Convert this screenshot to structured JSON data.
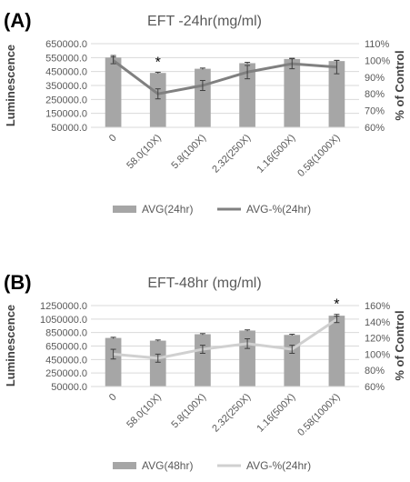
{
  "colors": {
    "bar_a": "#a6a6a6",
    "line_a": "#808080",
    "bar_b": "#a6a6a6",
    "line_b": "#d0d0d0",
    "axis_text": "#595959",
    "axis_title": "#404040",
    "panel_label": "#000000",
    "grid": "#d9d9d9"
  },
  "chart_data": [
    {
      "type": "bar",
      "panel_label": "(A)",
      "title": "EFT -24hr(mg/ml)",
      "xlabel": "",
      "ylabel": "Luminescence",
      "y2label": "% of Control",
      "categories": [
        "0",
        "58.0(10X)",
        "5.8(100X)",
        "2.32(250X)",
        "1.16(500X)",
        "0.58(1000X)"
      ],
      "ylim": [
        50000,
        650000
      ],
      "yticks": [
        50000,
        150000,
        250000,
        350000,
        450000,
        550000,
        650000
      ],
      "ytick_labels": [
        "50000.0",
        "150000.0",
        "250000.0",
        "350000.0",
        "450000.0",
        "550000.0",
        "650000.0"
      ],
      "y2lim": [
        60,
        110
      ],
      "y2ticks": [
        60,
        70,
        80,
        90,
        100,
        110
      ],
      "y2tick_labels": [
        "60%",
        "70%",
        "80%",
        "90%",
        "100%",
        "110%"
      ],
      "grid": true,
      "legend": "bottom",
      "series": [
        {
          "name": "AVG(24hr)",
          "kind": "bar",
          "axis": "left",
          "values": [
            550000,
            440000,
            470000,
            510000,
            540000,
            525000
          ],
          "errors": [
            15000,
            5000,
            5000,
            6000,
            5000,
            5000
          ]
        },
        {
          "name": "AVG-%(24hr)",
          "kind": "line",
          "axis": "right",
          "values": [
            100,
            80,
            85,
            93,
            98,
            96
          ],
          "errors": [
            2,
            3,
            3,
            4,
            3,
            4
          ]
        }
      ],
      "annotations": [
        {
          "category": "58.0(10X)",
          "text": "*"
        }
      ]
    },
    {
      "type": "bar",
      "panel_label": "(B)",
      "title": "EFT-48hr (mg/ml)",
      "xlabel": "",
      "ylabel": "Luminescence",
      "y2label": "% of Control",
      "categories": [
        "0",
        "58.0(10X)",
        "5.8(100X)",
        "2.32(250X)",
        "1.16(500X)",
        "0.58(1000X)"
      ],
      "ylim": [
        50000,
        1250000
      ],
      "yticks": [
        50000,
        250000,
        450000,
        650000,
        850000,
        1050000,
        1250000
      ],
      "ytick_labels": [
        "50000.0",
        "250000.0",
        "450000.0",
        "650000.0",
        "850000.0",
        "1050000.0",
        "1250000.0"
      ],
      "y2lim": [
        60,
        160
      ],
      "y2ticks": [
        60,
        80,
        100,
        120,
        140,
        160
      ],
      "y2tick_labels": [
        "60%",
        "80%",
        "100%",
        "120%",
        "140%",
        "160%"
      ],
      "grid": true,
      "legend": "bottom",
      "series": [
        {
          "name": "AVG(48hr)",
          "kind": "bar",
          "axis": "left",
          "values": [
            770000,
            730000,
            825000,
            880000,
            815000,
            1100000
          ],
          "errors": [
            10000,
            10000,
            10000,
            10000,
            10000,
            20000
          ]
        },
        {
          "name": "AVG-%(24hr)",
          "kind": "line",
          "axis": "right",
          "values": [
            100,
            95,
            106,
            113,
            106,
            143
          ],
          "errors": [
            6,
            5,
            5,
            6,
            5,
            4
          ]
        }
      ],
      "annotations": [
        {
          "category": "0.58(1000X)",
          "text": "*"
        }
      ]
    }
  ]
}
